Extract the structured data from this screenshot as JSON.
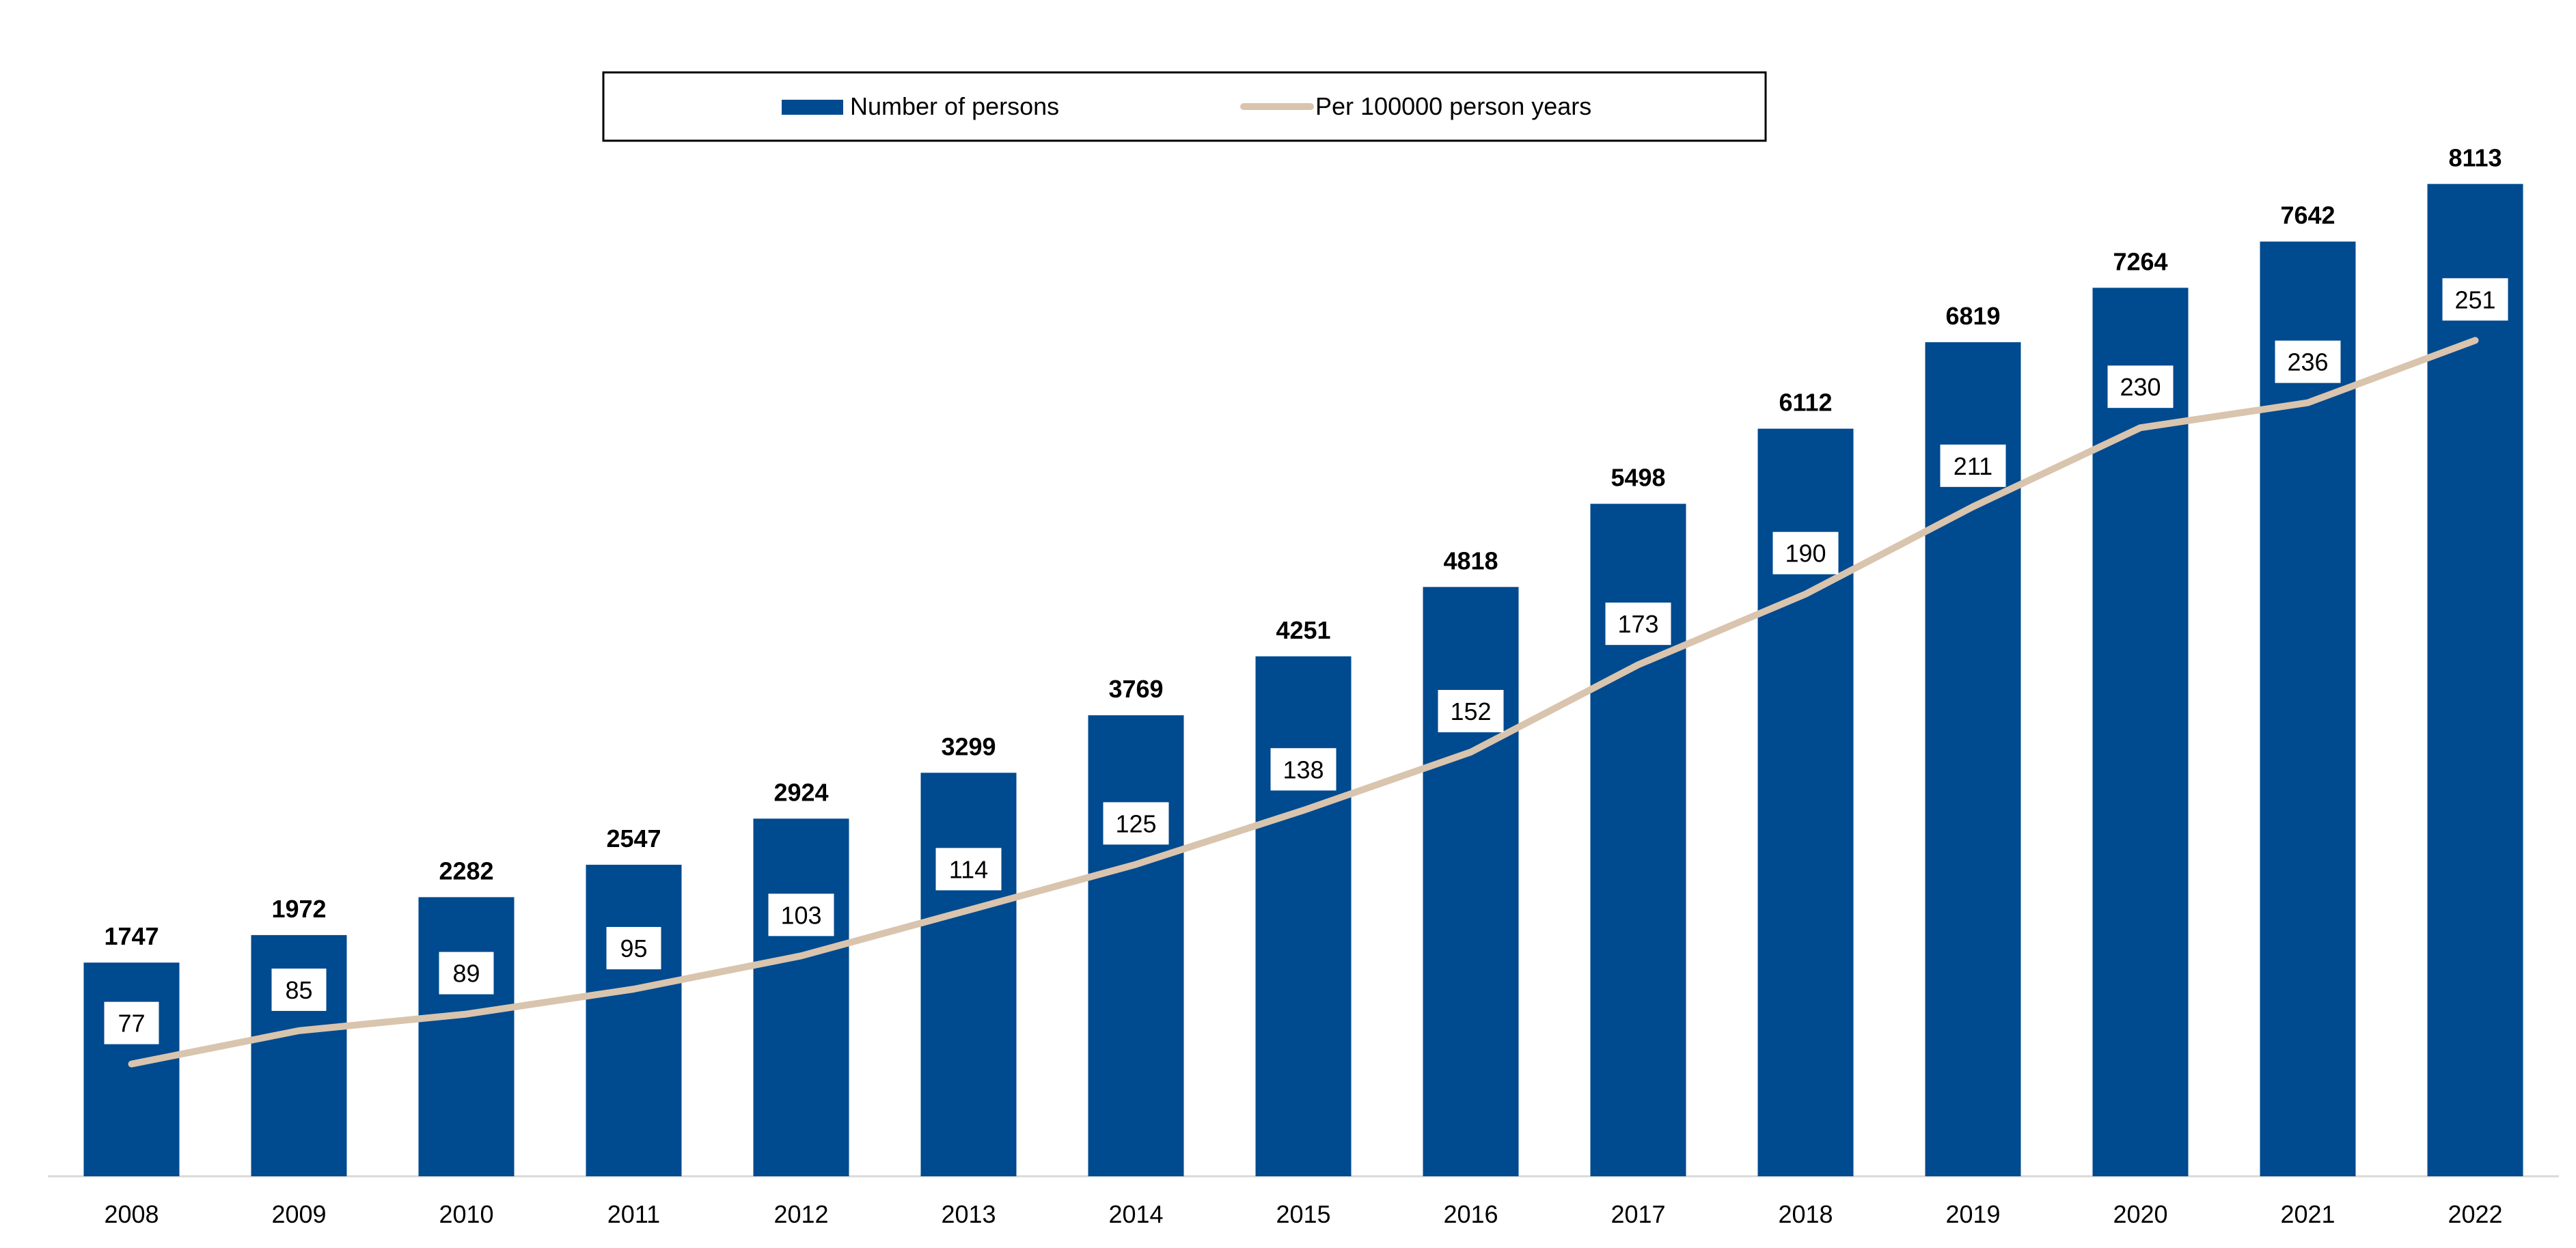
{
  "chart_data": {
    "type": "bar",
    "categories": [
      "2008",
      "2009",
      "2010",
      "2011",
      "2012",
      "2013",
      "2014",
      "2015",
      "2016",
      "2017",
      "2018",
      "2019",
      "2020",
      "2021",
      "2022"
    ],
    "series": [
      {
        "name": "Number of persons",
        "type": "bar",
        "axis": "primary",
        "values": [
          1747,
          1972,
          2282,
          2547,
          2924,
          3299,
          3769,
          4251,
          4818,
          5498,
          6112,
          6819,
          7264,
          7642,
          8113
        ]
      },
      {
        "name": "Per 100000 person years",
        "type": "line",
        "axis": "secondary",
        "values": [
          77,
          85,
          89,
          95,
          103,
          114,
          125,
          138,
          152,
          173,
          190,
          211,
          230,
          236,
          251
        ]
      }
    ],
    "title": "",
    "xlabel": "",
    "ylabel": "",
    "ylim": [
      0,
      8500
    ],
    "y2lim": [
      50,
      300
    ],
    "legend": "top-center",
    "grid": false,
    "colors": {
      "bar": "#004A8F",
      "line": "#D9C4AE",
      "axis": "#D9D9D9",
      "legend_border": "#000000"
    }
  }
}
